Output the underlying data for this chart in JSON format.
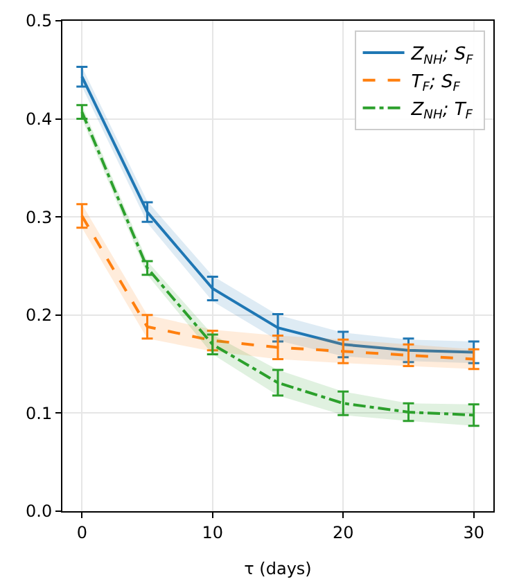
{
  "chart_data": {
    "type": "line",
    "xlabel": "τ (days)",
    "x": [
      0,
      5,
      10,
      15,
      20,
      25,
      30
    ],
    "xlim": [
      -1.5,
      31.5
    ],
    "xticks": [
      0,
      10,
      20,
      30
    ],
    "ylim": [
      0,
      0.5
    ],
    "yticks": [
      {
        "value": 0,
        "label": "0.0"
      },
      0.1,
      0.2,
      0.3,
      0.4,
      0.5
    ],
    "grid": true,
    "legend": "top right",
    "marker": "none",
    "series": [
      {
        "name": "Z$_{NH}$; S$_{F}$",
        "color": "#1f77b4",
        "line_style": "solid",
        "values": [
          0.443,
          0.305,
          0.227,
          0.187,
          0.17,
          0.164,
          0.162
        ],
        "errors": [
          0.01,
          0.01,
          0.012,
          0.014,
          0.013,
          0.012,
          0.011
        ],
        "lower": [
          0.433,
          0.294,
          0.214,
          0.174,
          0.158,
          0.153,
          0.151
        ],
        "upper": [
          0.453,
          0.316,
          0.24,
          0.2,
          0.182,
          0.175,
          0.173
        ]
      },
      {
        "name": "T$_{F}$; S$_{F}$",
        "color": "#ff7f0e",
        "line_style": "dashed",
        "values": [
          0.301,
          0.188,
          0.174,
          0.167,
          0.163,
          0.159,
          0.155
        ],
        "errors": [
          0.012,
          0.012,
          0.01,
          0.012,
          0.012,
          0.011,
          0.01
        ],
        "lower": [
          0.289,
          0.176,
          0.163,
          0.155,
          0.151,
          0.148,
          0.145
        ],
        "upper": [
          0.313,
          0.2,
          0.185,
          0.179,
          0.175,
          0.17,
          0.165
        ]
      },
      {
        "name": "Z$_{NH}$; T$_{F}$",
        "color": "#2ca02c",
        "line_style": "dashdot",
        "values": [
          0.407,
          0.248,
          0.17,
          0.131,
          0.11,
          0.101,
          0.098
        ],
        "errors": [
          0.007,
          0.007,
          0.01,
          0.013,
          0.012,
          0.009,
          0.011
        ],
        "lower": [
          0.4,
          0.241,
          0.16,
          0.118,
          0.098,
          0.092,
          0.087
        ],
        "upper": [
          0.414,
          0.255,
          0.18,
          0.144,
          0.122,
          0.11,
          0.109
        ]
      }
    ]
  }
}
